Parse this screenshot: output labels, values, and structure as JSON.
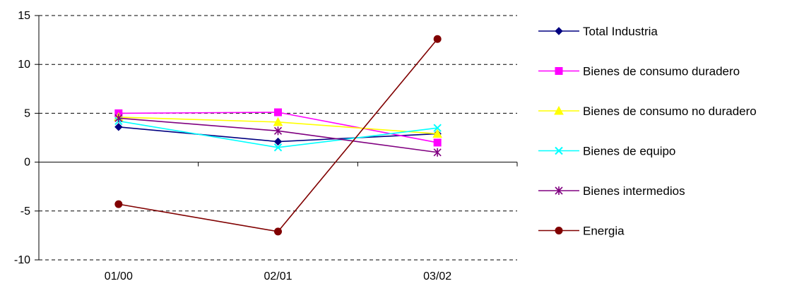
{
  "chart_data": {
    "type": "line",
    "title": "",
    "xlabel": "",
    "ylabel": "",
    "categories": [
      "01/00",
      "02/01",
      "03/02"
    ],
    "ylim": [
      -10,
      15
    ],
    "yticks": [
      -10,
      -5,
      0,
      5,
      10,
      15
    ],
    "grid": "horizontal-dashed",
    "legend_position": "right",
    "series": [
      {
        "name": "Total Industria",
        "values": [
          3.6,
          2.1,
          2.9
        ],
        "color": "#000080",
        "marker": "diamond"
      },
      {
        "name": "Bienes de consumo duradero",
        "values": [
          5.0,
          5.1,
          2.0
        ],
        "color": "#FF00FF",
        "marker": "square"
      },
      {
        "name": "Bienes de consumo no duradero",
        "values": [
          4.6,
          4.1,
          2.9
        ],
        "color": "#FFFF00",
        "marker": "triangle"
      },
      {
        "name": "Bienes de equipo",
        "values": [
          4.2,
          1.5,
          3.5
        ],
        "color": "#00FFFF",
        "marker": "x"
      },
      {
        "name": "Bienes intermedios",
        "values": [
          4.5,
          3.2,
          1.0
        ],
        "color": "#800080",
        "marker": "star"
      },
      {
        "name": "Energia",
        "values": [
          -4.3,
          -7.1,
          12.6
        ],
        "color": "#800000",
        "marker": "circle"
      }
    ]
  }
}
